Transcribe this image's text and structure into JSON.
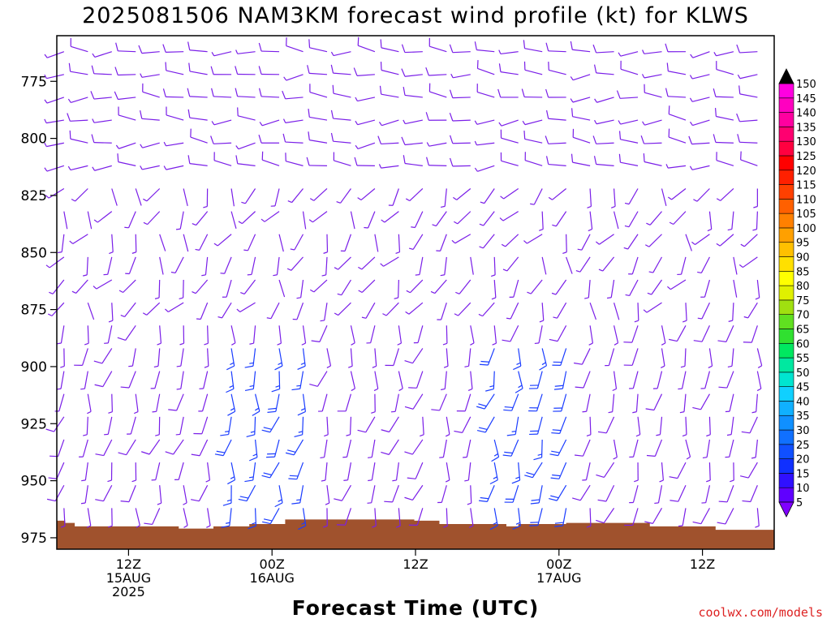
{
  "chart_data": {
    "type": "wind-barb-time-height",
    "title": "2025081506 NAM3KM forecast wind profile (kt) for KLWS",
    "xlabel": "Forecast Time (UTC)",
    "ylabel": "",
    "ylim": [
      980,
      755
    ],
    "y_ticks": [
      "775",
      "800",
      "825",
      "850",
      "875",
      "900",
      "925",
      "950",
      "975"
    ],
    "x_ticks": [
      {
        "line1": "12Z",
        "line2": "15AUG",
        "line3": "2025"
      },
      {
        "line1": "00Z",
        "line2": "16AUG",
        "line3": ""
      },
      {
        "line1": "12Z",
        "line2": "",
        "line3": ""
      },
      {
        "line1": "00Z",
        "line2": "17AUG",
        "line3": ""
      },
      {
        "line1": "12Z",
        "line2": "",
        "line3": ""
      }
    ],
    "x_range_hours": [
      6,
      66
    ],
    "x_tick_hours": [
      12,
      24,
      36,
      48,
      60
    ],
    "grid": false,
    "colorbar": {
      "labels": [
        "5",
        "10",
        "15",
        "20",
        "25",
        "30",
        "35",
        "40",
        "45",
        "50",
        "55",
        "60",
        "65",
        "70",
        "75",
        "80",
        "85",
        "90",
        "95",
        "100",
        "105",
        "110",
        "115",
        "120",
        "125",
        "130",
        "135",
        "140",
        "145",
        "150"
      ],
      "colors": [
        "#8000ff",
        "#6000ff",
        "#3010ff",
        "#1030ff",
        "#1050ff",
        "#1070ff",
        "#1090ff",
        "#10b0ff",
        "#10d0ff",
        "#00e5d0",
        "#00e8a0",
        "#00e860",
        "#30e030",
        "#60e020",
        "#a0e010",
        "#e0f000",
        "#ffff00",
        "#ffe000",
        "#ffc000",
        "#ffa000",
        "#ff8000",
        "#ff6000",
        "#ff4000",
        "#ff2000",
        "#ff0000",
        "#ff0040",
        "#ff0070",
        "#ff00a0",
        "#ff00c0",
        "#ff00e0"
      ]
    },
    "terrain_color": "#a0522d",
    "terrain": {
      "hours": [
        6,
        6.7,
        7.5,
        9.5,
        11.4,
        16.2,
        19.1,
        22.1,
        25.1,
        35.9,
        38.0,
        43.6,
        44.6,
        48.6,
        55.6,
        58.8,
        61.1,
        66
      ],
      "pressure": [
        967.5,
        968.5,
        970,
        970,
        970,
        971,
        970,
        969,
        967,
        967.5,
        969,
        970,
        969,
        968.5,
        970,
        970,
        971.5,
        972
      ]
    },
    "wind_barbs_note": "approximately 30 time columns x 21 pressure levels; predominantly westerly 5-15 kt aloft, southerly/light below 875 hPa, stronger (15-25 kt) southwesterly core near 900-950 hPa around 00Z 16AUG and 00Z 17AUG",
    "barb_levels": [
      760,
      770,
      780,
      790,
      800,
      810,
      820,
      830,
      840,
      850,
      860,
      870,
      880,
      890,
      900,
      910,
      920,
      930,
      940,
      950,
      960
    ],
    "columns": 30
  },
  "credit": "coolwx.com/models"
}
